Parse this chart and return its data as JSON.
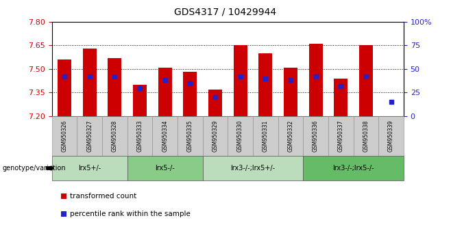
{
  "title": "GDS4317 / 10429944",
  "samples": [
    "GSM950326",
    "GSM950327",
    "GSM950328",
    "GSM950333",
    "GSM950334",
    "GSM950335",
    "GSM950329",
    "GSM950330",
    "GSM950331",
    "GSM950332",
    "GSM950336",
    "GSM950337",
    "GSM950338",
    "GSM950339"
  ],
  "bar_values": [
    7.56,
    7.63,
    7.57,
    7.4,
    7.51,
    7.48,
    7.37,
    7.65,
    7.6,
    7.51,
    7.66,
    7.44,
    7.65,
    7.2
  ],
  "blue_values": [
    42,
    42,
    42,
    30,
    38,
    35,
    20,
    42,
    40,
    38,
    42,
    32,
    42,
    15
  ],
  "ylim_left": [
    7.2,
    7.8
  ],
  "ylim_right": [
    0,
    100
  ],
  "yticks_left": [
    7.2,
    7.35,
    7.5,
    7.65,
    7.8
  ],
  "yticks_right": [
    0,
    25,
    50,
    75,
    100
  ],
  "grid_values": [
    7.35,
    7.5,
    7.65
  ],
  "bar_color": "#cc0000",
  "blue_color": "#2222cc",
  "bar_bottom": 7.2,
  "groups": [
    {
      "label": "lrx5+/-",
      "start": 0,
      "end": 3,
      "color": "#bbddbb"
    },
    {
      "label": "lrx5-/-",
      "start": 3,
      "end": 6,
      "color": "#88cc88"
    },
    {
      "label": "lrx3-/-;lrx5+/-",
      "start": 6,
      "end": 10,
      "color": "#bbddbb"
    },
    {
      "label": "lrx3-/-;lrx5-/-",
      "start": 10,
      "end": 14,
      "color": "#66bb66"
    }
  ],
  "genotype_label": "genotype/variation",
  "legend_items": [
    {
      "label": "transformed count",
      "color": "#cc0000"
    },
    {
      "label": "percentile rank within the sample",
      "color": "#2222cc"
    }
  ],
  "title_fontsize": 10,
  "tick_label_color_left": "#cc0000",
  "tick_label_color_right": "#2222cc",
  "bg_color": "#ffffff",
  "bar_width": 0.55
}
